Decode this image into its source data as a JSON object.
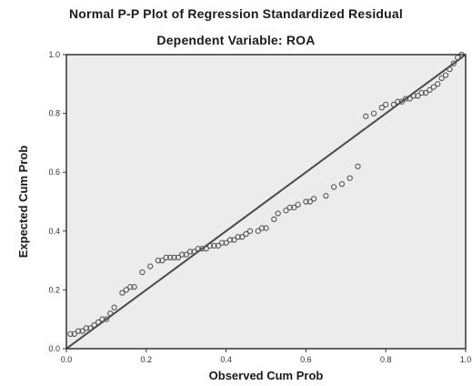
{
  "chart_data": {
    "type": "scatter",
    "title": "Normal P-P Plot of Regression Standardized Residual",
    "subtitle": "Dependent Variable: ROA",
    "xlabel": "Observed Cum Prob",
    "ylabel": "Expected Cum Prob",
    "xlim": [
      0.0,
      1.0
    ],
    "ylim": [
      0.0,
      1.0
    ],
    "x_ticks": [
      "0.0",
      "0.2",
      "0.4",
      "0.6",
      "0.8",
      "1.0"
    ],
    "y_ticks": [
      "0.0",
      "0.2",
      "0.4",
      "0.6",
      "0.8",
      "1.0"
    ],
    "reference_line": {
      "from": [
        0.0,
        0.0
      ],
      "to": [
        1.0,
        1.0
      ]
    },
    "points": {
      "x": [
        0.01,
        0.02,
        0.03,
        0.04,
        0.05,
        0.06,
        0.07,
        0.08,
        0.09,
        0.1,
        0.11,
        0.12,
        0.14,
        0.15,
        0.16,
        0.17,
        0.19,
        0.21,
        0.23,
        0.24,
        0.25,
        0.26,
        0.27,
        0.28,
        0.29,
        0.3,
        0.31,
        0.32,
        0.33,
        0.34,
        0.35,
        0.36,
        0.37,
        0.38,
        0.39,
        0.4,
        0.41,
        0.42,
        0.43,
        0.44,
        0.45,
        0.46,
        0.48,
        0.49,
        0.5,
        0.52,
        0.53,
        0.55,
        0.56,
        0.57,
        0.58,
        0.6,
        0.61,
        0.62,
        0.65,
        0.67,
        0.69,
        0.71,
        0.73,
        0.75,
        0.77,
        0.79,
        0.8,
        0.82,
        0.83,
        0.84,
        0.85,
        0.86,
        0.87,
        0.88,
        0.89,
        0.9,
        0.91,
        0.92,
        0.93,
        0.94,
        0.95,
        0.96,
        0.97,
        0.98,
        0.99
      ],
      "y": [
        0.05,
        0.05,
        0.06,
        0.06,
        0.07,
        0.07,
        0.08,
        0.09,
        0.1,
        0.1,
        0.12,
        0.14,
        0.19,
        0.2,
        0.21,
        0.21,
        0.26,
        0.28,
        0.3,
        0.3,
        0.31,
        0.31,
        0.31,
        0.31,
        0.32,
        0.32,
        0.33,
        0.33,
        0.34,
        0.34,
        0.34,
        0.35,
        0.35,
        0.35,
        0.36,
        0.36,
        0.37,
        0.37,
        0.38,
        0.38,
        0.39,
        0.4,
        0.4,
        0.41,
        0.41,
        0.44,
        0.46,
        0.47,
        0.48,
        0.48,
        0.49,
        0.5,
        0.5,
        0.51,
        0.52,
        0.55,
        0.56,
        0.58,
        0.62,
        0.79,
        0.8,
        0.82,
        0.83,
        0.83,
        0.84,
        0.84,
        0.85,
        0.85,
        0.86,
        0.86,
        0.87,
        0.87,
        0.88,
        0.89,
        0.9,
        0.92,
        0.93,
        0.95,
        0.97,
        0.99,
        1.0
      ]
    },
    "grid": false,
    "legend": "none"
  },
  "colors": {
    "plot_background": "#ececec",
    "frame": "#333333",
    "reference_line": "#4a4a4a",
    "marker_stroke": "#555555"
  }
}
